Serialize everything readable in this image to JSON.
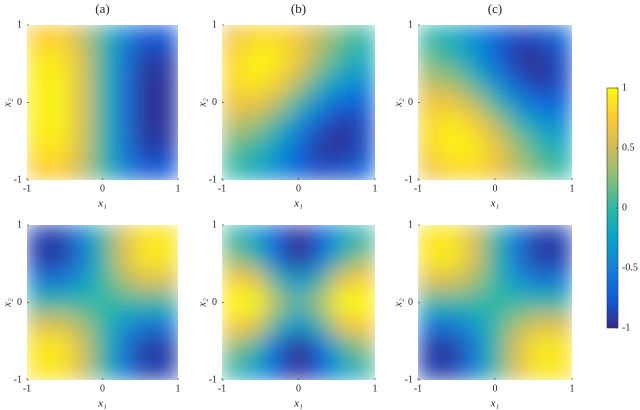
{
  "chart_data": [
    {
      "type": "heatmap",
      "title": "(a)",
      "xlabel": "x₁",
      "ylabel": "x₂",
      "xlim": [
        -1,
        1
      ],
      "ylim": [
        -1,
        1
      ],
      "xticks": [
        -1,
        0,
        1
      ],
      "yticks": [
        -1,
        0,
        1
      ],
      "z": [
        [
          0.75,
          0.77,
          0.48,
          0,
          -0.48,
          -0.77,
          -0.75
        ],
        [
          0.89,
          0.91,
          0.57,
          0,
          -0.57,
          -0.91,
          -0.89
        ],
        [
          0.94,
          0.96,
          0.6,
          0,
          -0.6,
          -0.96,
          -0.94
        ],
        [
          0.94,
          0.96,
          0.6,
          0,
          -0.6,
          -0.96,
          -0.94
        ],
        [
          0.94,
          0.96,
          0.6,
          0,
          -0.6,
          -0.96,
          -0.94
        ],
        [
          0.89,
          0.91,
          0.57,
          0,
          -0.57,
          -0.91,
          -0.89
        ],
        [
          0.75,
          0.77,
          0.48,
          0,
          -0.48,
          -0.77,
          -0.75
        ]
      ]
    },
    {
      "type": "heatmap",
      "title": "(b)",
      "xlabel": "x₁",
      "ylabel": "x₂",
      "xlim": [
        -1,
        1
      ],
      "ylim": [
        -1,
        1
      ],
      "xticks": [
        -1,
        0,
        1
      ],
      "yticks": [
        -1,
        0,
        1
      ],
      "z": [
        [
          0.65,
          0.81,
          0.83,
          0.68,
          0.42,
          0.16,
          0
        ],
        [
          0.81,
          0.97,
          0.93,
          0.68,
          0.31,
          0,
          -0.16
        ],
        [
          0.83,
          0.93,
          0.79,
          0.43,
          0,
          -0.31,
          -0.42
        ],
        [
          0.68,
          0.68,
          0.43,
          0,
          -0.43,
          -0.68,
          -0.68
        ],
        [
          0.42,
          0.31,
          0,
          -0.43,
          -0.79,
          -0.93,
          -0.83
        ],
        [
          0.16,
          0,
          -0.31,
          -0.68,
          -0.93,
          -0.97,
          -0.81
        ],
        [
          0,
          -0.16,
          -0.42,
          -0.68,
          -0.83,
          -0.81,
          -0.65
        ]
      ]
    },
    {
      "type": "heatmap",
      "title": "(c)",
      "xlabel": "x₁",
      "ylabel": "x₂",
      "xlim": [
        -1,
        1
      ],
      "ylim": [
        -1,
        1
      ],
      "xticks": [
        -1,
        0,
        1
      ],
      "yticks": [
        -1,
        0,
        1
      ],
      "z": [
        [
          0,
          -0.16,
          -0.42,
          -0.68,
          -0.83,
          -0.81,
          -0.65
        ],
        [
          0.16,
          0,
          -0.31,
          -0.68,
          -0.93,
          -0.97,
          -0.81
        ],
        [
          0.42,
          0.31,
          0,
          -0.43,
          -0.79,
          -0.93,
          -0.83
        ],
        [
          0.68,
          0.68,
          0.43,
          0,
          -0.43,
          -0.68,
          -0.68
        ],
        [
          0.83,
          0.93,
          0.79,
          0.43,
          0,
          -0.31,
          -0.42
        ],
        [
          0.81,
          0.97,
          0.93,
          0.68,
          0.31,
          0,
          -0.16
        ],
        [
          0.65,
          0.81,
          0.83,
          0.68,
          0.42,
          0.16,
          0
        ]
      ]
    },
    {
      "type": "heatmap",
      "xlabel": "x₁",
      "ylabel": "x₂",
      "xlim": [
        -1,
        1
      ],
      "ylim": [
        -1,
        1
      ],
      "xticks": [
        -1,
        0,
        1
      ],
      "yticks": [
        -1,
        0,
        1
      ],
      "z": [
        [
          -0.88,
          -0.9,
          -0.56,
          0,
          0.56,
          0.9,
          0.88
        ],
        [
          -0.9,
          -0.92,
          -0.58,
          0,
          0.58,
          0.92,
          0.9
        ],
        [
          -0.56,
          -0.58,
          -0.36,
          0,
          0.36,
          0.58,
          0.56
        ],
        [
          0,
          0,
          0,
          0,
          0,
          0,
          0
        ],
        [
          0.56,
          0.58,
          0.36,
          0,
          -0.36,
          -0.58,
          -0.56
        ],
        [
          0.9,
          0.92,
          0.58,
          0,
          -0.58,
          -0.92,
          -0.9
        ],
        [
          0.88,
          0.9,
          0.56,
          0,
          -0.56,
          -0.9,
          -0.88
        ]
      ]
    },
    {
      "type": "heatmap",
      "xlabel": "x₁",
      "ylabel": "x₂",
      "xlim": [
        -1,
        1
      ],
      "ylim": [
        -1,
        1
      ],
      "xticks": [
        -1,
        0,
        1
      ],
      "yticks": [
        -1,
        0,
        1
      ],
      "z": [
        [
          0,
          -0.29,
          -0.76,
          -1,
          -0.76,
          -0.29,
          0
        ],
        [
          0.29,
          0,
          -0.64,
          -1,
          -0.64,
          0,
          0.29
        ],
        [
          0.76,
          0.64,
          0,
          -0.41,
          0,
          0.64,
          0.76
        ],
        [
          1,
          1,
          0.41,
          0,
          0.41,
          1,
          1
        ],
        [
          0.76,
          0.64,
          0,
          -0.41,
          0,
          0.64,
          0.76
        ],
        [
          0.29,
          0,
          -0.64,
          -1,
          -0.64,
          0,
          0.29
        ],
        [
          0,
          -0.29,
          -0.76,
          -1,
          -0.76,
          -0.29,
          0
        ]
      ]
    },
    {
      "type": "heatmap",
      "xlabel": "x₁",
      "ylabel": "x₂",
      "xlim": [
        -1,
        1
      ],
      "ylim": [
        -1,
        1
      ],
      "xticks": [
        -1,
        0,
        1
      ],
      "yticks": [
        -1,
        0,
        1
      ],
      "z": [
        [
          0.88,
          0.9,
          0.56,
          0,
          -0.56,
          -0.9,
          -0.88
        ],
        [
          0.9,
          0.92,
          0.58,
          0,
          -0.58,
          -0.92,
          -0.9
        ],
        [
          0.56,
          0.58,
          0.36,
          0,
          -0.36,
          -0.58,
          -0.56
        ],
        [
          0,
          0,
          0,
          0,
          0,
          0,
          0
        ],
        [
          -0.56,
          -0.58,
          -0.36,
          0,
          0.36,
          0.58,
          0.56
        ],
        [
          -0.9,
          -0.92,
          -0.58,
          0,
          0.58,
          0.92,
          0.9
        ],
        [
          -0.88,
          -0.9,
          -0.56,
          0,
          0.56,
          0.9,
          0.88
        ]
      ]
    }
  ],
  "colorbar": {
    "clim": [
      -1,
      1
    ],
    "ticks": [
      -1,
      -0.5,
      0,
      0.5,
      1
    ],
    "colormap": [
      "#352a87",
      "#0f5cdd",
      "#1481d6",
      "#06a4ca",
      "#2eb7a4",
      "#87bf77",
      "#d1bb59",
      "#fec832",
      "#f9fb0e"
    ]
  }
}
